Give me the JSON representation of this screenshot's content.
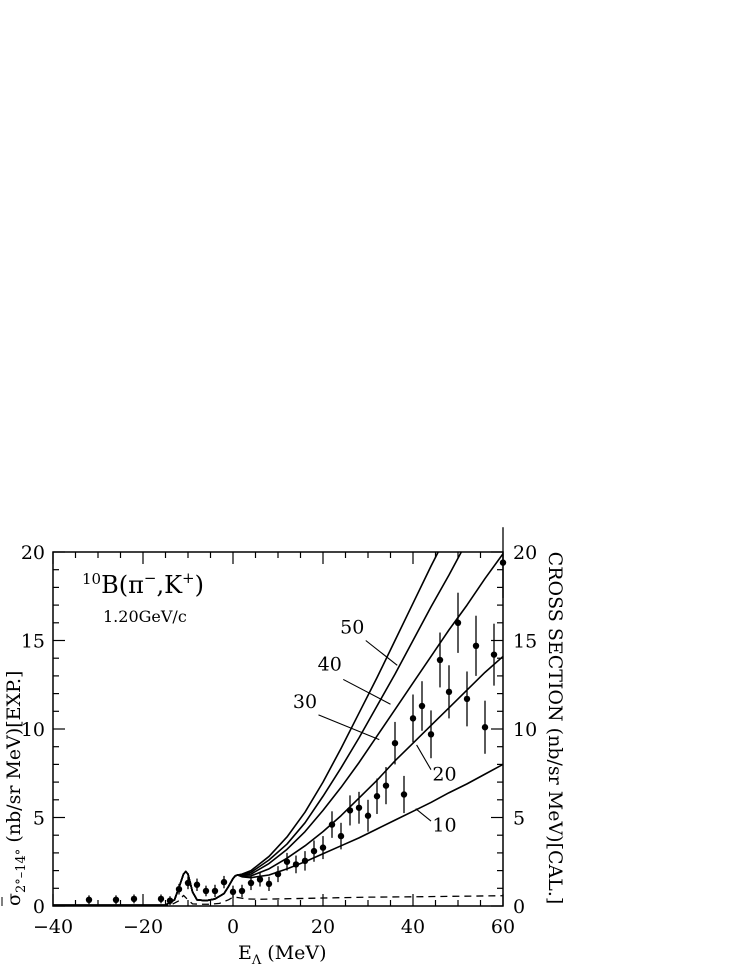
{
  "chart_data": {
    "type": "scatter",
    "title": {
      "reaction_superscript_mass": "10",
      "reaction_core": "B(π",
      "pi_charge": "−",
      "reaction_mid": ",K",
      "k_charge": "+",
      "reaction_end": ")",
      "momentum": "1.20GeV/c"
    },
    "xlabel": {
      "base": "E",
      "subscript": "Λ",
      "tail": " (MeV)"
    },
    "ylabel_left": {
      "base": "σ",
      "subscript": "2°–14°",
      "tail": " (nb/sr MeV)[EXP.]"
    },
    "ylabel_right": "CROSS SECTION (nb/sr MeV)[CAL.]",
    "xlim": [
      -40,
      60
    ],
    "ylim": [
      0,
      20
    ],
    "x_ticks": [
      -40,
      -20,
      0,
      20,
      40,
      60
    ],
    "x_tick_labels": [
      "−40",
      "−20",
      "0",
      "20",
      "40",
      "60"
    ],
    "y_ticks": [
      0,
      5,
      10,
      15,
      20
    ],
    "y_tick_labels": [
      "0",
      "5",
      "10",
      "15",
      "20"
    ],
    "grid": false,
    "legend": "none",
    "curve_labels": [
      {
        "text": "50",
        "x_text": 26.5,
        "y_text": 15.4,
        "x_line": [
          29.5,
          36.5
        ],
        "y_line": [
          15.0,
          13.6
        ]
      },
      {
        "text": "40",
        "x_text": 21.5,
        "y_text": 13.3,
        "x_line": [
          24.5,
          35.0
        ],
        "y_line": [
          12.8,
          11.4
        ]
      },
      {
        "text": "30",
        "x_text": 16.0,
        "y_text": 11.2,
        "x_line": [
          19.0,
          32.5
        ],
        "y_line": [
          10.8,
          9.4
        ]
      },
      {
        "text": "20",
        "x_text": 47.0,
        "y_text": 7.1,
        "x_line": [
          44.0,
          40.8
        ],
        "y_line": [
          7.7,
          9.1
        ]
      },
      {
        "text": "10",
        "x_text": 47.0,
        "y_text": 4.2,
        "x_line": [
          44.0,
          40.6
        ],
        "y_line": [
          4.8,
          5.5
        ]
      }
    ],
    "series": [
      {
        "name": "50",
        "style": "solid",
        "x": [
          -40,
          -15,
          -13,
          -12,
          -11,
          -10.5,
          -10,
          -9,
          -8,
          -6,
          -4,
          -2,
          -1,
          0,
          0.5,
          1,
          2,
          4,
          8,
          12,
          16,
          20,
          24,
          28,
          32,
          36,
          40,
          44,
          48
        ],
        "y": [
          0.05,
          0.05,
          0.35,
          1.05,
          1.8,
          1.95,
          1.8,
          0.8,
          0.35,
          0.3,
          0.4,
          0.7,
          1.1,
          1.55,
          1.7,
          1.75,
          1.8,
          2.0,
          2.8,
          3.9,
          5.3,
          7.0,
          8.9,
          10.9,
          12.9,
          15.0,
          17.1,
          19.2,
          21.2
        ]
      },
      {
        "name": "40",
        "style": "solid",
        "x": [
          -40,
          -15,
          -13,
          -12,
          -11,
          -10.5,
          -10,
          -9,
          -8,
          -6,
          -4,
          -2,
          -1,
          0,
          0.5,
          1,
          2,
          4,
          8,
          12,
          16,
          20,
          24,
          28,
          32,
          36,
          40,
          44,
          48,
          52,
          56
        ],
        "y": [
          0.05,
          0.05,
          0.35,
          1.05,
          1.8,
          1.95,
          1.8,
          0.8,
          0.35,
          0.3,
          0.4,
          0.7,
          1.1,
          1.55,
          1.7,
          1.75,
          1.78,
          1.9,
          2.6,
          3.5,
          4.7,
          6.2,
          7.8,
          9.5,
          11.3,
          13.1,
          15.0,
          16.9,
          18.7,
          20.6,
          22.4
        ]
      },
      {
        "name": "30",
        "style": "solid",
        "x": [
          -40,
          -15,
          -13,
          -12,
          -11,
          -10.5,
          -10,
          -9,
          -8,
          -6,
          -4,
          -2,
          -1,
          0,
          0.5,
          1,
          2,
          4,
          8,
          12,
          16,
          20,
          24,
          28,
          32,
          36,
          40,
          44,
          48,
          52,
          56,
          60
        ],
        "y": [
          0.05,
          0.05,
          0.35,
          1.05,
          1.8,
          1.95,
          1.8,
          0.8,
          0.35,
          0.3,
          0.4,
          0.7,
          1.1,
          1.55,
          1.7,
          1.75,
          1.75,
          1.8,
          2.4,
          3.2,
          4.2,
          5.4,
          6.7,
          8.1,
          9.6,
          11.1,
          12.6,
          14.1,
          15.6,
          17.0,
          18.5,
          19.9
        ]
      },
      {
        "name": "20",
        "style": "solid",
        "x": [
          -40,
          -15,
          -13,
          -12,
          -11,
          -10.5,
          -10,
          -9,
          -8,
          -6,
          -4,
          -2,
          -1,
          0,
          0.5,
          1,
          2,
          4,
          8,
          12,
          16,
          20,
          24,
          28,
          32,
          36,
          40,
          44,
          48,
          52,
          56,
          60
        ],
        "y": [
          0.05,
          0.05,
          0.35,
          1.05,
          1.8,
          1.95,
          1.8,
          0.8,
          0.35,
          0.3,
          0.4,
          0.7,
          1.1,
          1.55,
          1.7,
          1.75,
          1.7,
          1.7,
          2.1,
          2.7,
          3.4,
          4.2,
          5.1,
          6.1,
          7.1,
          8.2,
          9.2,
          10.2,
          11.2,
          12.2,
          13.2,
          14.1
        ]
      },
      {
        "name": "10",
        "style": "solid",
        "x": [
          -40,
          -15,
          -13,
          -12,
          -11,
          -10.5,
          -10,
          -9,
          -8,
          -6,
          -4,
          -2,
          -1,
          0,
          0.5,
          1,
          2,
          4,
          8,
          12,
          16,
          20,
          24,
          28,
          32,
          36,
          40,
          44,
          48,
          52,
          56,
          60
        ],
        "y": [
          0.05,
          0.05,
          0.35,
          1.05,
          1.8,
          1.95,
          1.8,
          0.8,
          0.35,
          0.3,
          0.4,
          0.7,
          1.1,
          1.55,
          1.7,
          1.75,
          1.65,
          1.6,
          1.75,
          2.1,
          2.5,
          2.95,
          3.4,
          3.85,
          4.35,
          4.85,
          5.35,
          5.85,
          6.4,
          6.9,
          7.45,
          8.0
        ]
      },
      {
        "name": "dashed",
        "style": "dashed",
        "x": [
          -40,
          -14,
          -12,
          -11,
          -10,
          -9,
          -7,
          -5,
          -3,
          -1,
          0,
          1,
          3,
          6,
          10,
          20,
          30,
          40,
          50,
          60
        ],
        "y": [
          0.03,
          0.03,
          0.3,
          0.6,
          0.35,
          0.12,
          0.1,
          0.1,
          0.15,
          0.35,
          0.5,
          0.48,
          0.4,
          0.38,
          0.4,
          0.45,
          0.5,
          0.52,
          0.55,
          0.58
        ]
      }
    ],
    "points": [
      {
        "x": -32.0,
        "y": 0.35,
        "err": 0.25
      },
      {
        "x": -26.0,
        "y": 0.35,
        "err": 0.25
      },
      {
        "x": -22.0,
        "y": 0.4,
        "err": 0.25
      },
      {
        "x": -16.0,
        "y": 0.4,
        "err": 0.25
      },
      {
        "x": -14.0,
        "y": 0.3,
        "err": 0.25
      },
      {
        "x": -12.0,
        "y": 0.95,
        "err": 0.3
      },
      {
        "x": -10.0,
        "y": 1.3,
        "err": 0.35
      },
      {
        "x": -8.0,
        "y": 1.2,
        "err": 0.35
      },
      {
        "x": -6.0,
        "y": 0.85,
        "err": 0.3
      },
      {
        "x": -4.0,
        "y": 0.85,
        "err": 0.35
      },
      {
        "x": -2.0,
        "y": 1.35,
        "err": 0.35
      },
      {
        "x": 0.0,
        "y": 0.8,
        "err": 0.35
      },
      {
        "x": 2.0,
        "y": 0.85,
        "err": 0.35
      },
      {
        "x": 4.0,
        "y": 1.3,
        "err": 0.4
      },
      {
        "x": 6.0,
        "y": 1.5,
        "err": 0.4
      },
      {
        "x": 8.0,
        "y": 1.25,
        "err": 0.4
      },
      {
        "x": 10.0,
        "y": 1.8,
        "err": 0.45
      },
      {
        "x": 12.0,
        "y": 2.5,
        "err": 0.5
      },
      {
        "x": 14.0,
        "y": 2.35,
        "err": 0.5
      },
      {
        "x": 16.0,
        "y": 2.55,
        "err": 0.55
      },
      {
        "x": 18.0,
        "y": 3.1,
        "err": 0.6
      },
      {
        "x": 20.0,
        "y": 3.3,
        "err": 0.65
      },
      {
        "x": 22.0,
        "y": 4.6,
        "err": 0.75
      },
      {
        "x": 24.0,
        "y": 3.95,
        "err": 0.75
      },
      {
        "x": 26.0,
        "y": 5.4,
        "err": 0.85
      },
      {
        "x": 28.0,
        "y": 5.55,
        "err": 0.9
      },
      {
        "x": 30.0,
        "y": 5.1,
        "err": 0.9
      },
      {
        "x": 32.0,
        "y": 6.2,
        "err": 1.0
      },
      {
        "x": 34.0,
        "y": 6.8,
        "err": 1.05
      },
      {
        "x": 36.0,
        "y": 9.2,
        "err": 1.2
      },
      {
        "x": 38.0,
        "y": 6.3,
        "err": 1.05
      },
      {
        "x": 40.0,
        "y": 10.6,
        "err": 1.35
      },
      {
        "x": 42.0,
        "y": 11.3,
        "err": 1.4
      },
      {
        "x": 44.0,
        "y": 9.7,
        "err": 1.35
      },
      {
        "x": 46.0,
        "y": 13.9,
        "err": 1.55
      },
      {
        "x": 48.0,
        "y": 12.1,
        "err": 1.5
      },
      {
        "x": 50.0,
        "y": 16.0,
        "err": 1.7
      },
      {
        "x": 52.0,
        "y": 11.7,
        "err": 1.55
      },
      {
        "x": 54.0,
        "y": 14.7,
        "err": 1.7
      },
      {
        "x": 56.0,
        "y": 10.1,
        "err": 1.5
      },
      {
        "x": 58.0,
        "y": 14.2,
        "err": 1.75
      },
      {
        "x": 60.0,
        "y": 19.4,
        "err": 2.0
      }
    ]
  }
}
